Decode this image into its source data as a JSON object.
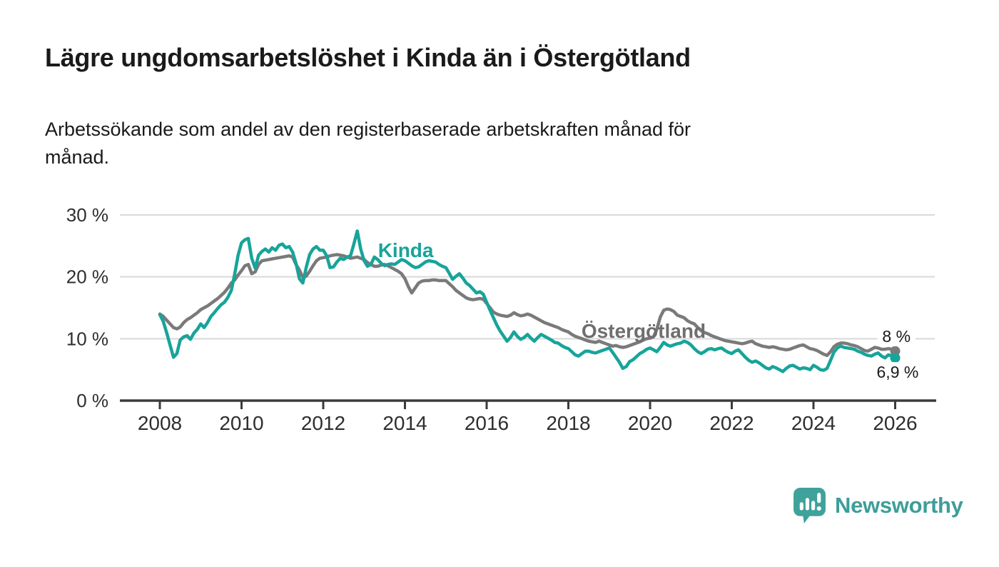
{
  "header": {
    "title": "Lägre ungdomsarbetslöshet i Kinda än i Östergötland",
    "subtitle": "Arbetssökande som andel av den registerbaserade arbetskraften månad för\nmånad."
  },
  "chart_data": {
    "type": "line",
    "title": "Lägre ungdomsarbetslöshet i Kinda än i Östergötland",
    "x_axis": {
      "ticks": [
        2008,
        2010,
        2012,
        2014,
        2016,
        2018,
        2020,
        2022,
        2024,
        2026
      ],
      "grid": false
    },
    "y_axis": {
      "unit": "%",
      "range": [
        0,
        30
      ],
      "grid": true,
      "ticks": [
        {
          "value": 0,
          "label": "0 %"
        },
        {
          "value": 10,
          "label": "10 %"
        },
        {
          "value": 20,
          "label": "20 %"
        },
        {
          "value": 30,
          "label": "30 %"
        }
      ]
    },
    "series": [
      {
        "name": "Östergötland",
        "color": "#7a7a7a",
        "label_color": "#6e6e6e",
        "start_year": 2008,
        "interval_months": 1,
        "inline_label": {
          "text": "Östergötland",
          "year": 2018.32,
          "value": 10.15
        },
        "end_label": {
          "text": "8 %",
          "year": 2026.03,
          "value": 10.4,
          "bg": true
        },
        "end_dot": true,
        "values": [
          14.0,
          13.6,
          13.0,
          12.4,
          11.8,
          11.6,
          11.9,
          12.6,
          13.1,
          13.4,
          13.8,
          14.2,
          14.7,
          15.0,
          15.3,
          15.7,
          16.1,
          16.5,
          17.0,
          17.5,
          18.2,
          19.0,
          19.5,
          20.3,
          21.0,
          21.8,
          22.0,
          20.5,
          20.8,
          22.0,
          22.6,
          22.7,
          22.8,
          22.9,
          23.0,
          23.1,
          23.2,
          23.3,
          23.4,
          23.2,
          22.0,
          21.1,
          19.9,
          20.1,
          20.9,
          21.8,
          22.6,
          23.0,
          23.1,
          23.2,
          23.4,
          23.5,
          23.6,
          23.5,
          23.4,
          23.2,
          23.0,
          23.1,
          23.2,
          23.0,
          22.8,
          22.3,
          22.0,
          21.7,
          21.7,
          21.9,
          22.0,
          21.8,
          21.5,
          21.2,
          20.9,
          20.5,
          19.7,
          18.4,
          17.4,
          18.2,
          19.0,
          19.3,
          19.4,
          19.4,
          19.5,
          19.5,
          19.4,
          19.4,
          19.4,
          18.9,
          18.4,
          17.8,
          17.4,
          17.0,
          16.6,
          16.4,
          16.3,
          16.4,
          16.5,
          16.4,
          15.7,
          15.0,
          14.3,
          14.0,
          13.8,
          13.7,
          13.6,
          13.8,
          14.2,
          13.9,
          13.7,
          13.8,
          14.0,
          13.8,
          13.5,
          13.2,
          12.9,
          12.6,
          12.4,
          12.2,
          12.0,
          11.8,
          11.5,
          11.3,
          11.1,
          10.7,
          10.4,
          10.2,
          10.0,
          9.8,
          9.6,
          9.5,
          9.4,
          9.6,
          9.4,
          9.2,
          9.0,
          8.8,
          8.9,
          8.7,
          8.6,
          8.7,
          8.9,
          9.1,
          9.3,
          9.5,
          9.8,
          10.0,
          10.1,
          10.3,
          11.5,
          13.5,
          14.6,
          14.8,
          14.7,
          14.4,
          13.8,
          13.6,
          13.4,
          12.9,
          12.6,
          12.4,
          11.8,
          11.3,
          11.0,
          10.8,
          10.5,
          10.3,
          10.1,
          9.9,
          9.7,
          9.6,
          9.5,
          9.4,
          9.3,
          9.2,
          9.3,
          9.5,
          9.6,
          9.2,
          9.0,
          8.8,
          8.7,
          8.6,
          8.7,
          8.6,
          8.4,
          8.3,
          8.2,
          8.3,
          8.5,
          8.7,
          8.9,
          9.0,
          8.7,
          8.4,
          8.3,
          8.1,
          7.8,
          7.5,
          7.3,
          7.9,
          8.7,
          9.1,
          9.3,
          9.3,
          9.2,
          9.0,
          8.9,
          8.7,
          8.4,
          8.1,
          8.0,
          8.3,
          8.6,
          8.5,
          8.3,
          8.3,
          8.4,
          8.3,
          8.0
        ]
      },
      {
        "name": "Kinda",
        "color": "#17a49a",
        "label_color": "#17a49a",
        "start_year": 2008,
        "interval_months": 1,
        "inline_label": {
          "text": "Kinda",
          "year": 2013.34,
          "value": 23.2
        },
        "end_label": {
          "text": "6,9 %",
          "year": 2026.06,
          "value": 4.6,
          "bg": true
        },
        "end_dot": true,
        "values": [
          13.9,
          12.8,
          11.0,
          9.0,
          7.0,
          7.6,
          9.8,
          10.3,
          10.5,
          9.9,
          10.9,
          11.5,
          12.4,
          11.8,
          12.6,
          13.6,
          14.2,
          14.9,
          15.5,
          15.9,
          16.7,
          17.8,
          20.5,
          23.5,
          25.5,
          26.0,
          26.2,
          23.0,
          21.4,
          23.5,
          24.1,
          24.5,
          24.0,
          24.7,
          24.3,
          25.1,
          25.3,
          24.7,
          24.9,
          24.0,
          22.2,
          19.7,
          19.0,
          21.5,
          23.6,
          24.5,
          24.9,
          24.3,
          24.3,
          23.4,
          21.5,
          21.6,
          22.4,
          23.0,
          22.8,
          23.2,
          23.4,
          25.3,
          27.4,
          24.5,
          22.6,
          21.7,
          22.0,
          23.2,
          22.8,
          22.2,
          21.8,
          22.0,
          22.1,
          22.0,
          22.4,
          22.8,
          22.6,
          22.2,
          21.8,
          21.5,
          21.6,
          22.0,
          22.4,
          22.6,
          22.5,
          22.4,
          22.0,
          21.7,
          21.5,
          20.6,
          19.6,
          20.1,
          20.5,
          19.8,
          19.0,
          18.6,
          18.0,
          17.4,
          17.6,
          17.2,
          15.9,
          14.6,
          13.4,
          12.2,
          11.2,
          10.4,
          9.6,
          10.2,
          11.1,
          10.4,
          9.9,
          10.2,
          10.7,
          10.1,
          9.6,
          10.2,
          10.7,
          10.4,
          10.1,
          9.8,
          9.4,
          9.3,
          8.9,
          8.6,
          8.4,
          7.9,
          7.4,
          7.2,
          7.6,
          8.0,
          8.0,
          7.8,
          7.7,
          7.9,
          8.1,
          8.3,
          8.5,
          7.8,
          7.0,
          6.2,
          5.2,
          5.5,
          6.3,
          6.6,
          7.1,
          7.6,
          7.9,
          8.3,
          8.5,
          8.2,
          7.9,
          8.6,
          9.4,
          9.0,
          8.8,
          9.0,
          9.2,
          9.3,
          9.6,
          9.4,
          9.0,
          8.4,
          7.9,
          7.6,
          7.9,
          8.3,
          8.4,
          8.2,
          8.4,
          8.5,
          8.1,
          7.8,
          7.6,
          8.0,
          8.2,
          7.6,
          7.0,
          6.5,
          6.2,
          6.4,
          6.1,
          5.7,
          5.3,
          5.1,
          5.5,
          5.3,
          5.0,
          4.7,
          5.2,
          5.6,
          5.7,
          5.4,
          5.1,
          5.3,
          5.2,
          5.0,
          5.7,
          5.4,
          5.0,
          4.9,
          5.2,
          6.5,
          7.8,
          8.5,
          8.8,
          8.6,
          8.5,
          8.4,
          8.3,
          8.0,
          7.8,
          7.5,
          7.3,
          7.2,
          7.5,
          7.7,
          7.2,
          6.9,
          7.4,
          7.2,
          6.9
        ]
      }
    ]
  },
  "colors": {
    "kinda": "#17a49a",
    "ostergotland": "#7a7a7a",
    "gridline": "#d9d9d9",
    "axis": "#3b3b3b",
    "text": "#1a1a1a",
    "brand": "#3d9e98"
  },
  "footer": {
    "brand": "Newsworthy"
  }
}
